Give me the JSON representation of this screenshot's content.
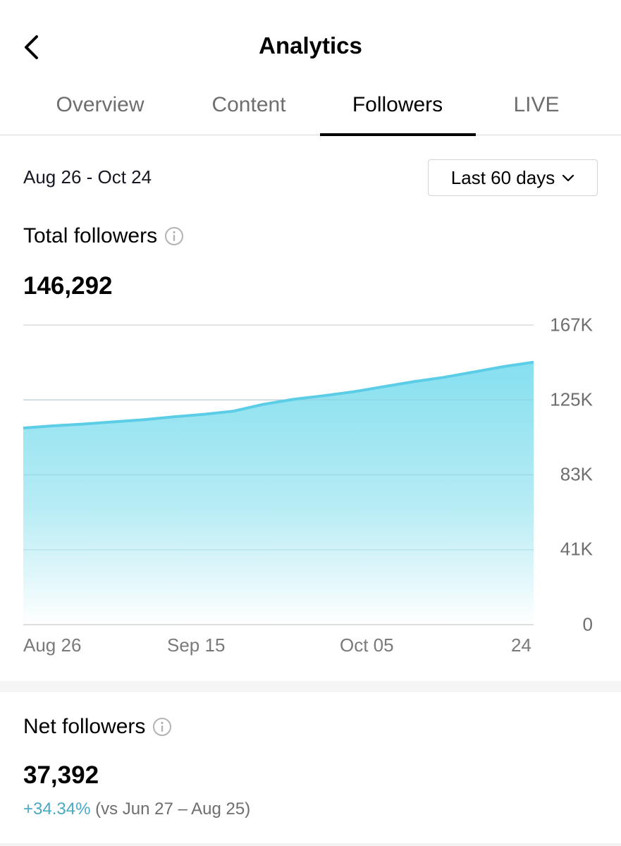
{
  "header": {
    "title": "Analytics",
    "back_icon": "chevron-left-icon"
  },
  "tabs": [
    {
      "label": "Overview",
      "active": false
    },
    {
      "label": "Content",
      "active": false
    },
    {
      "label": "Followers",
      "active": true
    },
    {
      "label": "LIVE",
      "active": false
    }
  ],
  "date_range": {
    "text": "Aug 26 - Oct 24",
    "dropdown_label": "Last 60 days",
    "dropdown_icon": "chevron-down-icon"
  },
  "total_followers": {
    "label": "Total followers",
    "info_icon": "info-icon",
    "value": "146,292"
  },
  "net_followers": {
    "label": "Net followers",
    "info_icon": "info-icon",
    "value": "37,392",
    "change": "+34.34%",
    "comparison": "(vs Jun 27 – Aug 25)"
  },
  "colors": {
    "accent_line": "#5ccde6",
    "accent_fill": "#8fe0ef",
    "positive_change": "#4aa9c4",
    "tab_active": "#000000",
    "tab_inactive": "#6e6e6e"
  },
  "chart_data": {
    "type": "area",
    "title": "Total followers",
    "xlabel": "",
    "ylabel": "",
    "x_tick_labels": [
      "Aug 26",
      "Sep 15",
      "Oct 05",
      "24"
    ],
    "y_tick_labels": [
      "167K",
      "125K",
      "83K",
      "41K",
      "0"
    ],
    "ylim": [
      0,
      167000
    ],
    "grid": true,
    "legend": "none",
    "series": [
      {
        "name": "Total followers",
        "x": [
          "Aug 26",
          "Aug 29",
          "Sep 02",
          "Sep 05",
          "Sep 08",
          "Sep 12",
          "Sep 15",
          "Sep 18",
          "Sep 21",
          "Sep 24",
          "Sep 28",
          "Oct 01",
          "Oct 05",
          "Oct 09",
          "Oct 13",
          "Oct 17",
          "Oct 21",
          "Oct 24"
        ],
        "values": [
          109600,
          110800,
          111800,
          113000,
          114200,
          115800,
          117200,
          119000,
          122800,
          125600,
          127600,
          129800,
          132600,
          135400,
          137800,
          140800,
          143800,
          146292
        ]
      }
    ]
  }
}
